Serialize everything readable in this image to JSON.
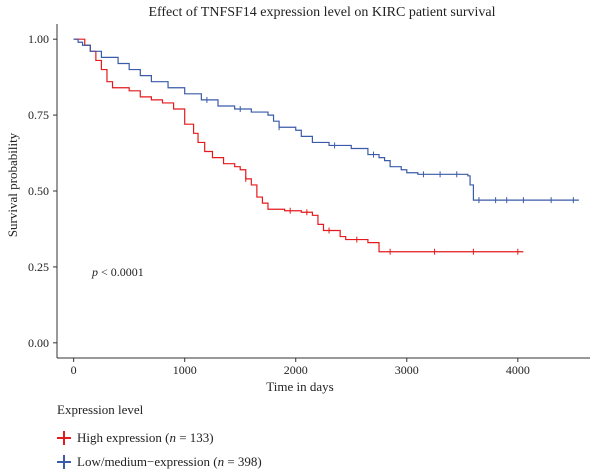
{
  "chart_data": {
    "type": "line",
    "title": "Effect of TNFSF14 expression level on KIRC patient survival",
    "xlabel": "Time in days",
    "ylabel": "Survival probability",
    "xlim": [
      -150,
      4650
    ],
    "ylim": [
      -0.05,
      1.05
    ],
    "x_ticks": [
      0,
      1000,
      2000,
      3000,
      4000
    ],
    "x_tick_labels": [
      "0",
      "1000",
      "2000",
      "3000",
      "4000"
    ],
    "y_ticks": [
      0,
      0.25,
      0.5,
      0.75,
      1.0
    ],
    "y_tick_labels": [
      "0.00",
      "0.25",
      "0.50",
      "0.75",
      "1.00"
    ],
    "annotation_p": "p",
    "annotation_rest": " < 0.0001",
    "legend_title": "Expression level",
    "legend_placement": "bottom",
    "series": [
      {
        "name": "High expression",
        "n_label": "n",
        "n_value": " = 133",
        "color": "#e41a1c",
        "steps": [
          [
            0,
            1.0
          ],
          [
            100,
            0.98
          ],
          [
            150,
            0.96
          ],
          [
            200,
            0.93
          ],
          [
            250,
            0.9
          ],
          [
            300,
            0.86
          ],
          [
            350,
            0.84
          ],
          [
            500,
            0.83
          ],
          [
            600,
            0.81
          ],
          [
            700,
            0.8
          ],
          [
            800,
            0.79
          ],
          [
            900,
            0.77
          ],
          [
            1000,
            0.72
          ],
          [
            1080,
            0.69
          ],
          [
            1120,
            0.66
          ],
          [
            1180,
            0.63
          ],
          [
            1250,
            0.61
          ],
          [
            1350,
            0.59
          ],
          [
            1450,
            0.58
          ],
          [
            1500,
            0.57
          ],
          [
            1550,
            0.54
          ],
          [
            1600,
            0.52
          ],
          [
            1650,
            0.48
          ],
          [
            1700,
            0.46
          ],
          [
            1750,
            0.44
          ],
          [
            1900,
            0.435
          ],
          [
            2050,
            0.43
          ],
          [
            2150,
            0.42
          ],
          [
            2200,
            0.39
          ],
          [
            2250,
            0.37
          ],
          [
            2400,
            0.35
          ],
          [
            2450,
            0.34
          ],
          [
            2650,
            0.33
          ],
          [
            2750,
            0.3
          ],
          [
            4050,
            0.3
          ]
        ],
        "censors": [
          [
            1550,
            0.54
          ],
          [
            1950,
            0.435
          ],
          [
            2100,
            0.43
          ],
          [
            2300,
            0.37
          ],
          [
            2550,
            0.34
          ],
          [
            2850,
            0.3
          ],
          [
            3250,
            0.3
          ],
          [
            3600,
            0.3
          ],
          [
            4000,
            0.3
          ]
        ]
      },
      {
        "name": "Low/medium−expression",
        "n_label": "n",
        "n_value": " = 398",
        "color": "#3a5ba9",
        "steps": [
          [
            0,
            1.0
          ],
          [
            40,
            0.99
          ],
          [
            80,
            0.98
          ],
          [
            150,
            0.96
          ],
          [
            250,
            0.94
          ],
          [
            400,
            0.92
          ],
          [
            500,
            0.9
          ],
          [
            600,
            0.88
          ],
          [
            700,
            0.86
          ],
          [
            850,
            0.84
          ],
          [
            1000,
            0.82
          ],
          [
            1150,
            0.8
          ],
          [
            1300,
            0.78
          ],
          [
            1450,
            0.77
          ],
          [
            1600,
            0.76
          ],
          [
            1750,
            0.75
          ],
          [
            1800,
            0.73
          ],
          [
            1850,
            0.71
          ],
          [
            2000,
            0.7
          ],
          [
            2050,
            0.68
          ],
          [
            2150,
            0.66
          ],
          [
            2300,
            0.65
          ],
          [
            2500,
            0.64
          ],
          [
            2650,
            0.62
          ],
          [
            2750,
            0.61
          ],
          [
            2800,
            0.6
          ],
          [
            2850,
            0.58
          ],
          [
            2950,
            0.57
          ],
          [
            3000,
            0.56
          ],
          [
            3100,
            0.555
          ],
          [
            3550,
            0.55
          ],
          [
            3570,
            0.52
          ],
          [
            3600,
            0.47
          ],
          [
            4550,
            0.47
          ]
        ],
        "censors": [
          [
            1200,
            0.8
          ],
          [
            1500,
            0.77
          ],
          [
            1850,
            0.71
          ],
          [
            2350,
            0.65
          ],
          [
            2700,
            0.62
          ],
          [
            3150,
            0.555
          ],
          [
            3300,
            0.555
          ],
          [
            3450,
            0.555
          ],
          [
            3650,
            0.47
          ],
          [
            3800,
            0.47
          ],
          [
            3900,
            0.47
          ],
          [
            4050,
            0.47
          ],
          [
            4300,
            0.47
          ],
          [
            4500,
            0.47
          ]
        ]
      }
    ]
  }
}
